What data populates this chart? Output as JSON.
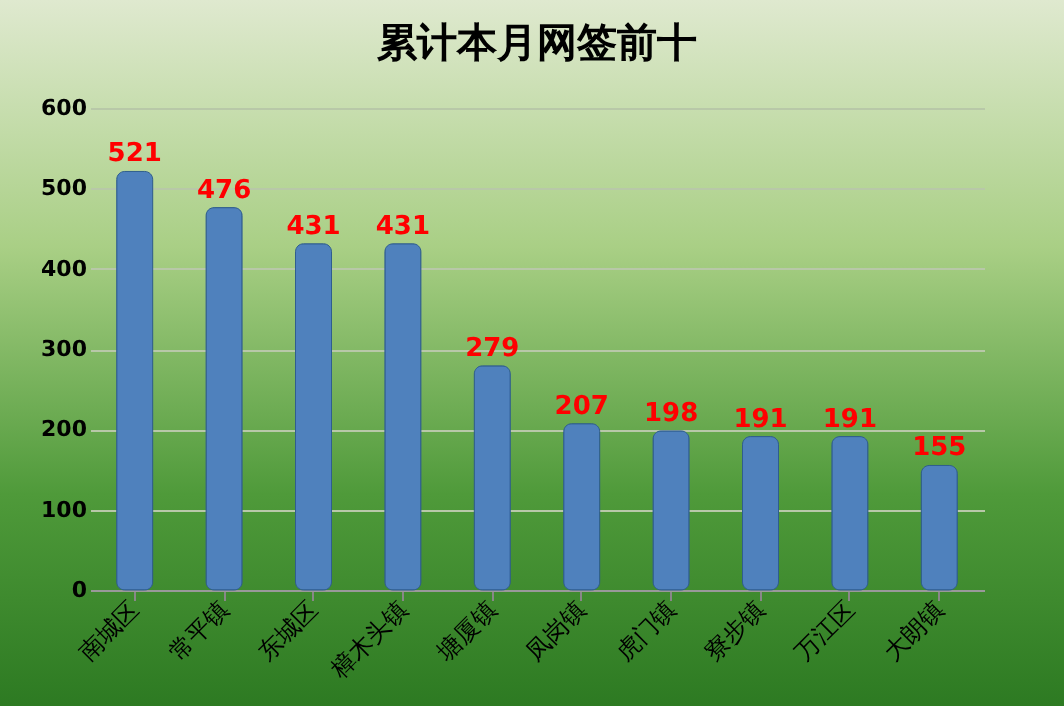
{
  "chart_data": {
    "type": "bar",
    "title": "累计本月网签前十",
    "categories": [
      "南城区",
      "常平镇",
      "东城区",
      "樟木头镇",
      "塘厦镇",
      "凤岗镇",
      "虎门镇",
      "寮步镇",
      "万江区",
      "大朗镇"
    ],
    "values": [
      521,
      476,
      431,
      431,
      279,
      207,
      198,
      191,
      191,
      155
    ],
    "color": "#4f81bd",
    "data_labels": true,
    "ylim": [
      0,
      600
    ],
    "yticks": [
      0,
      100,
      200,
      300,
      400,
      500,
      600
    ],
    "grid": "y"
  }
}
